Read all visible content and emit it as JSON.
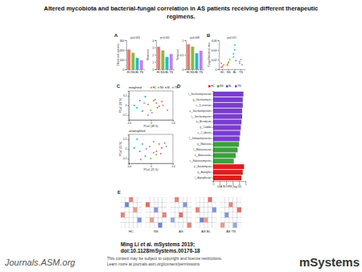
{
  "slide": {
    "title": [
      "Altered mycobiota and bacterial-fungal correlation in AS patients receiving different therapeutic",
      "regimens."
    ],
    "citation": [
      "Ming Li et al. mSystems 2019;",
      "doi:10.1128/mSystems.00176-18"
    ],
    "publisher": "Journals.ASM.org",
    "notice": [
      "This content may be subject to copyright and license restrictions.",
      "Learn more at journals.asm.org/content/permissions"
    ],
    "journal": "mSystems"
  },
  "chart_data": [
    {
      "type": "bar",
      "panel": "A",
      "y_label": "Observed species",
      "categories": [
        "HC",
        "NS",
        "BL",
        "TN"
      ],
      "values": [
        205,
        170,
        118,
        92
      ],
      "colors": [
        "#f0766d",
        "#8fb83a",
        "#22bfc4",
        "#c77cff"
      ],
      "ylim": [
        0,
        300
      ],
      "yticks": [
        0,
        100,
        200,
        300
      ],
      "annotations": [
        "p=0.003"
      ]
    },
    {
      "type": "bar",
      "y_label": "Shannon",
      "categories": [
        "HC",
        "NS",
        "BL",
        "TN"
      ],
      "values": [
        3.1,
        2.6,
        1.7,
        2.1
      ],
      "colors": [
        "#f0766d",
        "#8fb83a",
        "#22bfc4",
        "#c77cff"
      ],
      "ylim": [
        0,
        4
      ],
      "yticks": [
        0,
        1,
        2,
        3,
        4
      ],
      "annotations": [
        "p<0.001"
      ]
    },
    {
      "type": "bar",
      "y_label": "Simpson",
      "categories": [
        "HC",
        "NS",
        "BL",
        "TN"
      ],
      "values": [
        0.86,
        0.78,
        0.55,
        0.64
      ],
      "colors": [
        "#f0766d",
        "#8fb83a",
        "#22bfc4",
        "#c77cff"
      ],
      "ylim": [
        0,
        1
      ],
      "yticks": [
        0,
        0.5,
        1
      ],
      "annotations": [
        "p=0.008"
      ]
    },
    {
      "type": "strip",
      "panel": "B",
      "y_label": "Fungal/bacterial ratio",
      "categories": [
        "HC",
        "NS",
        "BL",
        "TN"
      ],
      "values": [
        [
          0.004,
          0.006,
          0.009,
          0.012,
          0.005
        ],
        [
          0.01,
          0.015,
          0.02,
          0.008,
          0.013
        ],
        [
          0.025,
          0.04,
          0.018,
          0.032,
          0.05
        ],
        [
          0.012,
          0.02,
          0.009,
          0.016
        ]
      ],
      "colors": [
        "#f0766d",
        "#8fb83a",
        "#22bfc4",
        "#c77cff"
      ],
      "ylim": [
        0,
        0.06
      ],
      "yticks": [
        0,
        0.02,
        0.04,
        0.06
      ],
      "annotations": [
        "p=0.012"
      ]
    },
    {
      "type": "scatter",
      "panel": "C",
      "title": "weighted",
      "legend": "top-right",
      "x_label": "PCo1 (38 %)",
      "y_label": "PCo2 (18 %)",
      "series": [
        {
          "name": "HC",
          "color": "#f0766d",
          "x": [
            0.1,
            0.15,
            0.2,
            0.05,
            0.22
          ],
          "values": [
            0.05,
            -0.02,
            0.08,
            0.1,
            0.0
          ]
        },
        {
          "name": "NS",
          "color": "#8fb83a",
          "x": [
            0.0,
            -0.05,
            0.12,
            0.08
          ],
          "values": [
            -0.1,
            0.02,
            -0.05,
            0.12
          ]
        },
        {
          "name": "BL",
          "color": "#22bfc4",
          "x": [
            -0.2,
            -0.25,
            -0.1,
            -0.3,
            -0.15
          ],
          "values": [
            0.1,
            -0.05,
            0.18,
            0.0,
            -0.12
          ]
        },
        {
          "name": "TN",
          "color": "#c77cff",
          "x": [
            -0.05,
            0.02,
            -0.12,
            0.3
          ],
          "values": [
            -0.2,
            -0.15,
            0.05,
            -0.1
          ]
        }
      ],
      "xlim": [
        -0.4,
        0.4
      ],
      "xticks": [
        -0.4,
        0,
        0.4
      ],
      "ylim": [
        -0.3,
        0.3
      ],
      "yticks": [
        -0.2,
        0,
        0.2
      ]
    },
    {
      "type": "scatter",
      "title": "unweighted",
      "x_label": "PCo1 (25 %)",
      "y_label": "PCo2 (12 %)",
      "series": [
        {
          "name": "HC",
          "color": "#f0766d",
          "x": [
            0.15,
            0.2,
            0.1,
            0.25,
            0.18
          ],
          "values": [
            0.1,
            0.02,
            -0.05,
            0.12,
            -0.1
          ]
        },
        {
          "name": "NS",
          "color": "#8fb83a",
          "x": [
            0.05,
            -0.02,
            0.1,
            0.0
          ],
          "values": [
            0.15,
            0.05,
            -0.12,
            -0.2
          ]
        },
        {
          "name": "BL",
          "color": "#22bfc4",
          "x": [
            -0.2,
            -0.15,
            -0.3,
            -0.1,
            -0.25
          ],
          "values": [
            -0.05,
            0.1,
            0.02,
            -0.15,
            0.2
          ]
        },
        {
          "name": "TN",
          "color": "#c77cff",
          "x": [
            -0.08,
            0.05,
            -0.18,
            0.28
          ],
          "values": [
            0.0,
            -0.08,
            -0.22,
            0.05
          ]
        }
      ],
      "xlim": [
        -0.4,
        0.4
      ],
      "xticks": [
        -0.4,
        0,
        0.4
      ],
      "ylim": [
        -0.3,
        0.3
      ],
      "yticks": [
        -0.2,
        0,
        0.2
      ]
    },
    {
      "type": "bar",
      "orientation": "horizontal",
      "panel": "D",
      "legend": "top",
      "x_label": "LDA SCORE (log 10)",
      "categories": [
        "f__Saccharomycetaceae",
        "g__Saccharomyces",
        "s__S_cerevisiae",
        "o__Saccharomycetales",
        "c__Saccharomycetes",
        "p__Ascomycota",
        "g__Candida",
        "s__C_albicans",
        "f__Debaryomycetaceae",
        "g__Malassezia",
        "f__Malasseziaceae",
        "o__Malasseziales",
        "c__Malasseziomycetes",
        "p__Basidiomycota",
        "g__Aspergillus",
        "f__Aspergillaceae"
      ],
      "series": [
        {
          "name": "HC",
          "color": "#e41a1c",
          "values": [
            null,
            null,
            null,
            null,
            null,
            null,
            null,
            null,
            null,
            null,
            null,
            null,
            null,
            4.8,
            4.6,
            4.4
          ]
        },
        {
          "name": "NS",
          "color": "#3aa13a",
          "values": [
            null,
            null,
            null,
            null,
            null,
            null,
            null,
            null,
            null,
            4.0,
            3.8,
            3.5,
            3.2,
            null,
            null,
            null
          ]
        },
        {
          "name": "BL",
          "color": "#3352d1",
          "values": [
            null,
            null,
            null,
            null,
            null,
            null,
            null,
            null,
            null,
            null,
            null,
            null,
            null,
            null,
            null,
            null
          ]
        },
        {
          "name": "TN",
          "color": "#7a3dd0",
          "values": [
            4.7,
            4.6,
            4.6,
            4.5,
            4.5,
            4.4,
            4.3,
            4.2,
            4.1,
            null,
            null,
            null,
            null,
            null,
            null,
            null
          ]
        }
      ],
      "xlim": [
        0,
        5
      ],
      "xticks": [
        0,
        1,
        2,
        3,
        4,
        5
      ]
    },
    {
      "type": "heatmap",
      "panel": "E",
      "title": "HC",
      "zlim": [
        -1,
        1
      ],
      "cells": [
        [
          0,
          0,
          0.6,
          0,
          0
        ],
        [
          0,
          -0.7,
          0,
          0,
          0
        ],
        [
          0,
          0,
          0,
          0.5,
          0
        ],
        [
          0.6,
          0,
          0,
          0,
          0
        ],
        [
          0,
          0,
          0,
          0,
          -0.6
        ],
        [
          0,
          0,
          0,
          0,
          0
        ]
      ]
    },
    {
      "type": "heatmap",
      "title": "NS",
      "zlim": [
        -1,
        1
      ],
      "cells": [
        [
          0,
          0,
          0,
          0,
          0
        ],
        [
          0.7,
          0,
          0,
          0,
          0
        ],
        [
          0,
          0,
          -0.6,
          0,
          0
        ],
        [
          0,
          0,
          0,
          0,
          0.6
        ],
        [
          0,
          0.5,
          0,
          0,
          0
        ],
        [
          0,
          0,
          0,
          -0.7,
          0
        ]
      ]
    },
    {
      "type": "heatmap",
      "title": "AS",
      "zlim": [
        -1,
        1
      ],
      "cells": [
        [
          0,
          0.6,
          0,
          0,
          0
        ],
        [
          0,
          0,
          0,
          -0.6,
          0
        ],
        [
          0,
          0,
          0,
          0,
          0
        ],
        [
          0,
          0,
          0.7,
          0,
          0
        ],
        [
          -0.5,
          0,
          0,
          0,
          0
        ],
        [
          0,
          0,
          0,
          0,
          0.6
        ]
      ]
    },
    {
      "type": "heatmap",
      "title": "AS BL",
      "zlim": [
        -1,
        1
      ],
      "cells": [
        [
          0,
          0,
          0,
          0.7,
          0
        ],
        [
          0,
          0,
          0,
          0,
          0
        ],
        [
          0.6,
          0,
          0,
          0,
          -0.6
        ],
        [
          0,
          0,
          0,
          0,
          0
        ],
        [
          0,
          -0.7,
          0.5,
          0,
          0
        ],
        [
          0,
          0,
          0,
          0,
          0
        ]
      ]
    },
    {
      "type": "heatmap",
      "title": "AS TN",
      "zlim": [
        -1,
        1
      ],
      "cells": [
        [
          0,
          0,
          0,
          0,
          0
        ],
        [
          0,
          0,
          0.6,
          0,
          0
        ],
        [
          0,
          0,
          0,
          0,
          0.7
        ],
        [
          0,
          -0.6,
          0,
          0,
          0
        ],
        [
          0,
          0,
          0,
          0,
          0
        ],
        [
          0.5,
          0,
          0,
          -0.5,
          0
        ]
      ]
    }
  ]
}
